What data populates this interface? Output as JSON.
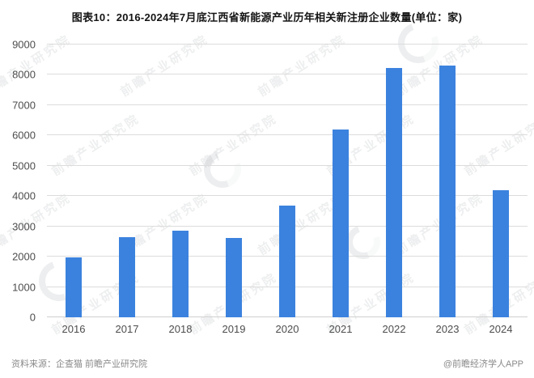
{
  "title": "图表10：2016-2024年7月底江西省新能源产业历年相关新注册企业数量(单位：家)",
  "footer": {
    "source": "资料来源：企查猫 前瞻产业研究院",
    "credit": "@前瞻经济学人APP"
  },
  "watermark": {
    "text": "前瞻产业研究院"
  },
  "colors": {
    "bar": "#3b82de",
    "gridline": "#dcdcdc",
    "axis_text": "#4d4d4d",
    "title_text": "#141414",
    "footer_text": "#8a8a8a"
  },
  "chart_data": {
    "type": "bar",
    "title": "图表10：2016-2024年7月底江西省新能源产业历年相关新注册企业数量(单位：家)",
    "categories": [
      "2016",
      "2017",
      "2018",
      "2019",
      "2020",
      "2021",
      "2022",
      "2023",
      "2024"
    ],
    "values": [
      1970,
      2640,
      2870,
      2610,
      3680,
      6200,
      8230,
      8300,
      4180
    ],
    "xlabel": "",
    "ylabel": "",
    "unit": "家",
    "ylim": [
      0,
      9000
    ],
    "yticks": [
      0,
      1000,
      2000,
      3000,
      4000,
      5000,
      6000,
      7000,
      8000,
      9000
    ],
    "grid": true,
    "legend": "none"
  }
}
